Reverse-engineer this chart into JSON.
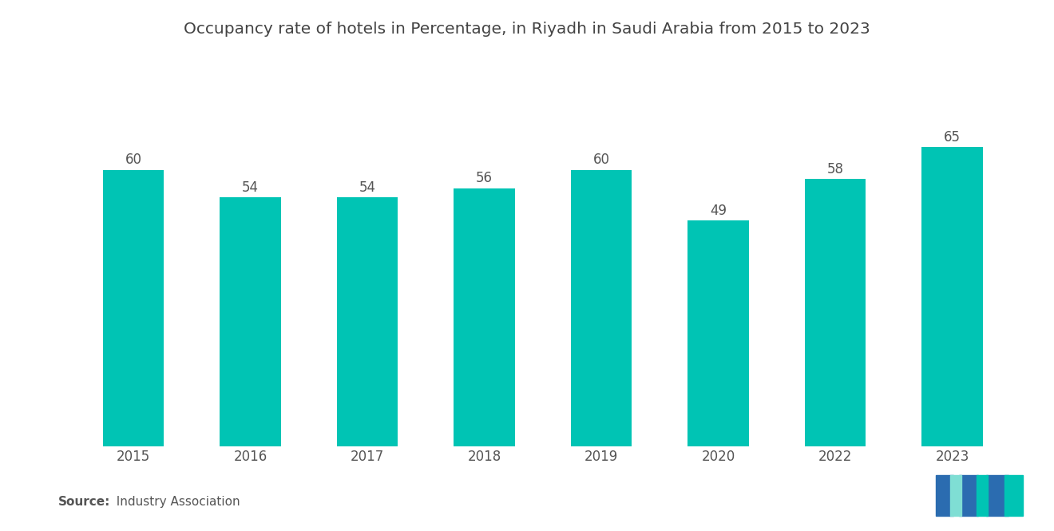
{
  "title": "Occupancy rate of hotels in Percentage, in Riyadh in Saudi Arabia from 2015 to 2023",
  "categories": [
    "2015",
    "2016",
    "2017",
    "2018",
    "2019",
    "2020",
    "2022",
    "2023"
  ],
  "values": [
    60,
    54,
    54,
    56,
    60,
    49,
    58,
    65
  ],
  "bar_color": "#00C4B4",
  "background_color": "#ffffff",
  "title_fontsize": 14.5,
  "label_fontsize": 12,
  "tick_fontsize": 12,
  "source_bold": "Source:",
  "source_normal": "  Industry Association",
  "ylim": [
    0,
    75
  ],
  "logo_blue": "#2B6CB0",
  "logo_teal": "#00C4B4",
  "logo_teal_light": "#7FDED4"
}
